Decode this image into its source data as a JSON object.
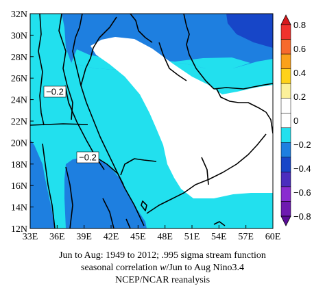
{
  "map": {
    "lon_ticks": [
      "33E",
      "36E",
      "39E",
      "42E",
      "45E",
      "48E",
      "51E",
      "54E",
      "57E",
      "60E"
    ],
    "lat_ticks": [
      "12N",
      "14N",
      "16N",
      "18N",
      "20N",
      "22N",
      "24N",
      "26N",
      "28N",
      "30N",
      "32N"
    ],
    "lon_range": [
      33,
      60
    ],
    "lat_range": [
      12,
      32
    ],
    "contour_labels": [
      "−0.2",
      "−0.2"
    ],
    "colors": {
      "white": "#ffffff",
      "light_cyan": "#22e0ee",
      "mid_blue": "#1e7fe0",
      "dark_blue": "#1746c8"
    }
  },
  "colorbar": {
    "labels": [
      "0.8",
      "0.6",
      "0.4",
      "0.2",
      "0",
      "−0.2",
      "−0.4",
      "−0.6",
      "−0.8"
    ],
    "colors_top_to_bottom": [
      "#d7191c",
      "#f0322d",
      "#f76a2c",
      "#fba11a",
      "#ffd21a",
      "#fbf09a",
      "#ffffff",
      "#ffffff",
      "#22e0ee",
      "#1e7fe0",
      "#1746c8",
      "#4b2dbe",
      "#8a2cd0",
      "#6e1bb0",
      "#5b0e98"
    ]
  },
  "caption": {
    "line1": "Jun to Aug: 1949 to 2012; .995 sigma stream function",
    "line2_a": "seasonal correlation ",
    "line2_em": "w",
    "line2_b": "/Jun to Aug Nino3.4",
    "line3": "NCEP/NCAR reanalysis"
  }
}
